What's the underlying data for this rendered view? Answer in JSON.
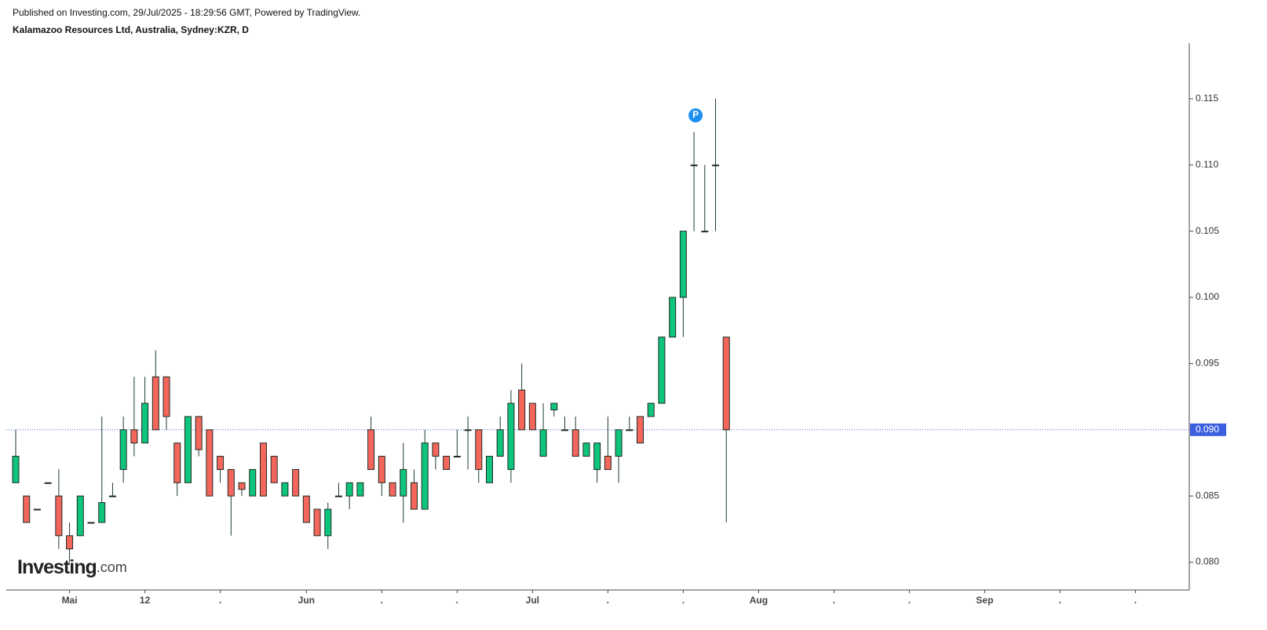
{
  "chart_data": {
    "type": "candlestick",
    "publisher": "Published on Investing.com, 29/Jul/2025 - 18:29:56 GMT, Powered by TradingView.",
    "title": "Kalamazoo Resources Ltd, Australia, Sydney:KZR, D",
    "watermark": "Investing",
    "watermark_suffix": ".com",
    "marker": "P",
    "marker_index": 63,
    "up_color": "#0fc47c",
    "down_color": "#f4665b",
    "series": {
      "open": [
        0.086,
        0.085,
        0.084,
        0.086,
        0.085,
        0.082,
        0.082,
        0.083,
        0.083,
        0.085,
        0.087,
        0.09,
        0.089,
        0.094,
        0.094,
        0.089,
        0.086,
        0.091,
        0.09,
        0.088,
        0.087,
        0.086,
        0.085,
        0.089,
        0.088,
        0.085,
        0.087,
        0.085,
        0.084,
        0.082,
        0.085,
        0.085,
        0.085,
        0.09,
        0.088,
        0.086,
        0.085,
        0.086,
        0.084,
        0.089,
        0.088,
        0.088,
        0.09,
        0.09,
        0.086,
        0.088,
        0.087,
        0.093,
        0.092,
        0.088,
        0.0915,
        0.09,
        0.09,
        0.088,
        0.087,
        0.088,
        0.088,
        0.09,
        0.091,
        0.091,
        0.092,
        0.097,
        0.1,
        0.11,
        0.105,
        0.11,
        0.097
      ],
      "high": [
        0.09,
        0.085,
        0.084,
        0.086,
        0.087,
        0.083,
        0.085,
        0.083,
        0.091,
        0.086,
        0.091,
        0.094,
        0.094,
        0.096,
        0.094,
        0.089,
        0.091,
        0.091,
        0.09,
        0.088,
        0.087,
        0.086,
        0.087,
        0.089,
        0.088,
        0.086,
        0.087,
        0.085,
        0.084,
        0.0845,
        0.086,
        0.086,
        0.086,
        0.091,
        0.088,
        0.086,
        0.089,
        0.087,
        0.09,
        0.089,
        0.088,
        0.09,
        0.091,
        0.09,
        0.088,
        0.091,
        0.093,
        0.095,
        0.092,
        0.092,
        0.092,
        0.091,
        0.091,
        0.089,
        0.089,
        0.091,
        0.09,
        0.091,
        0.091,
        0.092,
        0.097,
        0.1,
        0.105,
        0.1125,
        0.11,
        0.115,
        0.097
      ],
      "low": [
        0.086,
        0.083,
        0.084,
        0.086,
        0.081,
        0.08,
        0.082,
        0.083,
        0.083,
        0.085,
        0.086,
        0.088,
        0.089,
        0.09,
        0.09,
        0.085,
        0.086,
        0.088,
        0.085,
        0.086,
        0.082,
        0.085,
        0.085,
        0.085,
        0.086,
        0.085,
        0.085,
        0.083,
        0.082,
        0.081,
        0.085,
        0.084,
        0.085,
        0.087,
        0.085,
        0.085,
        0.083,
        0.084,
        0.084,
        0.087,
        0.087,
        0.088,
        0.087,
        0.086,
        0.086,
        0.088,
        0.086,
        0.09,
        0.09,
        0.088,
        0.091,
        0.09,
        0.088,
        0.088,
        0.086,
        0.087,
        0.086,
        0.09,
        0.089,
        0.091,
        0.092,
        0.097,
        0.097,
        0.105,
        0.105,
        0.105,
        0.083
      ],
      "close": [
        0.088,
        0.083,
        0.084,
        0.086,
        0.082,
        0.081,
        0.085,
        0.083,
        0.0845,
        0.085,
        0.09,
        0.089,
        0.092,
        0.09,
        0.091,
        0.086,
        0.091,
        0.0885,
        0.085,
        0.087,
        0.085,
        0.0855,
        0.087,
        0.085,
        0.086,
        0.086,
        0.085,
        0.083,
        0.082,
        0.084,
        0.085,
        0.086,
        0.086,
        0.087,
        0.086,
        0.085,
        0.087,
        0.084,
        0.089,
        0.088,
        0.087,
        0.088,
        0.09,
        0.087,
        0.088,
        0.09,
        0.092,
        0.09,
        0.09,
        0.09,
        0.092,
        0.09,
        0.088,
        0.089,
        0.089,
        0.087,
        0.09,
        0.09,
        0.089,
        0.092,
        0.097,
        0.1,
        0.105,
        0.11,
        0.105,
        0.11,
        0.09
      ]
    },
    "last_price": {
      "value": 0.09,
      "label": "0.090"
    },
    "xlim": [
      -0.875,
      109.0
    ],
    "xticks": [
      {
        "value": 5,
        "label": "Mai"
      },
      {
        "value": 12,
        "label": "12"
      },
      {
        "value": 19,
        "label": "."
      },
      {
        "value": 27,
        "label": "Jun"
      },
      {
        "value": 34,
        "label": "."
      },
      {
        "value": 41,
        "label": "."
      },
      {
        "value": 48,
        "label": "Jul"
      },
      {
        "value": 55,
        "label": "."
      },
      {
        "value": 62,
        "label": "."
      },
      {
        "value": 69,
        "label": "Aug"
      },
      {
        "value": 76,
        "label": "."
      },
      {
        "value": 83,
        "label": "."
      },
      {
        "value": 90,
        "label": "Sep"
      },
      {
        "value": 97,
        "label": "."
      },
      {
        "value": 104,
        "label": "."
      }
    ],
    "ylim": [
      0.0779,
      0.1192
    ],
    "yticks": [
      {
        "value": 0.08,
        "label": "0.080"
      },
      0.085,
      {
        "value": 0.09,
        "label": "0.090"
      },
      0.095,
      {
        "value": 0.1,
        "label": "0.100"
      },
      0.105,
      {
        "value": 0.11,
        "label": "0.110"
      },
      0.115
    ]
  }
}
